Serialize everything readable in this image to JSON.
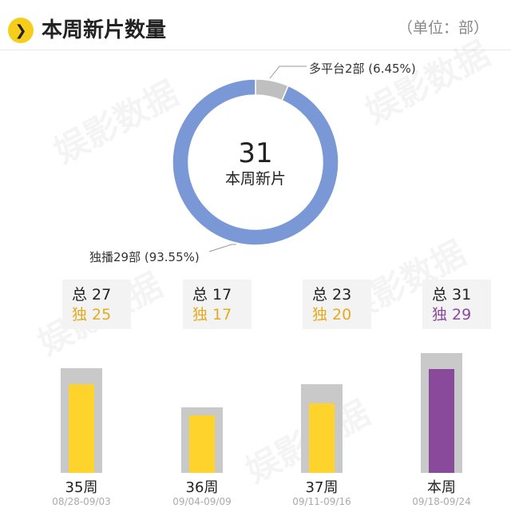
{
  "header": {
    "badge_icon": "chevron-right-icon",
    "title": "本周新片数量",
    "unit": "（单位：部）"
  },
  "watermark": "娱影数据",
  "colors": {
    "badge": "#f7cd1b",
    "exclusive": "#7b98d6",
    "multi": "#bfbfbf",
    "bar_track": "#c9c9c9",
    "bar_yellow": "#fdd32c",
    "bar_purple": "#8a4a9c",
    "exclusive_text_yellow": "#e4ab1e",
    "exclusive_text_purple": "#8a4a9c"
  },
  "chart_data": [
    {
      "type": "pie",
      "center_number": "31",
      "center_caption": "本周新片",
      "slices": [
        {
          "label": "多平台2部 (6.45%)",
          "value": 2,
          "percent": 6.45,
          "color": "#bfbfbf"
        },
        {
          "label": "独播29部 (93.55%)",
          "value": 29,
          "percent": 93.55,
          "color": "#7b98d6"
        }
      ]
    },
    {
      "type": "bar",
      "categories": [
        "35周",
        "36周",
        "37周",
        "本周"
      ],
      "dates": [
        "08/28-09/03",
        "09/04-09/09",
        "09/11-09/16",
        "09/18-09/24"
      ],
      "total_prefix": "总",
      "exclusive_prefix": "独",
      "series": [
        {
          "name": "总",
          "values": [
            27,
            17,
            23,
            31
          ]
        },
        {
          "name": "独",
          "values": [
            25,
            17,
            20,
            29
          ]
        }
      ],
      "highlight_index": 3,
      "ylim": [
        0,
        31
      ]
    }
  ]
}
